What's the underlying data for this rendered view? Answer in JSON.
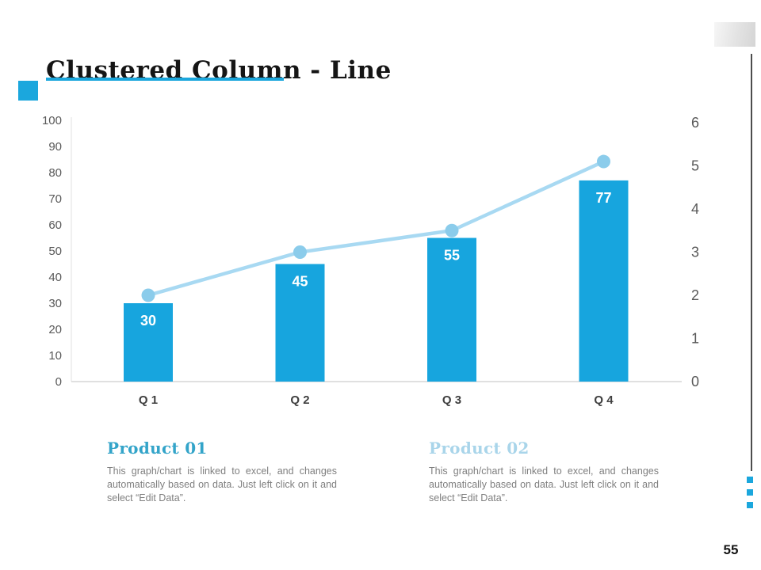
{
  "slide": {
    "title": "Clustered Column - Line",
    "page_number": "55",
    "accent_color": "#1ba7dd"
  },
  "chart_data": {
    "type": "bar",
    "subtype": "clustered-column-with-line",
    "categories": [
      "Q 1",
      "Q 2",
      "Q 3",
      "Q 4"
    ],
    "series": [
      {
        "name": "Product 01",
        "render": "column",
        "axis": "left",
        "values": [
          30,
          45,
          55,
          77
        ],
        "data_labels": [
          "30",
          "45",
          "55",
          "77"
        ]
      },
      {
        "name": "Product 02",
        "render": "line",
        "axis": "right",
        "values": [
          2,
          3,
          3.5,
          5.1
        ]
      }
    ],
    "left_axis": {
      "min": 0,
      "max": 100,
      "step": 10,
      "tick_labels": [
        "0",
        "10",
        "20",
        "30",
        "40",
        "50",
        "60",
        "70",
        "80",
        "90",
        "100"
      ]
    },
    "right_axis": {
      "min": 0,
      "max": 6,
      "step": 1,
      "tick_labels": [
        "0",
        "1",
        "2",
        "3",
        "4",
        "5",
        "6"
      ]
    },
    "grid": "off",
    "legend": "none",
    "colors": {
      "bar": "#17a5de",
      "line": "#a8d9f2",
      "marker": "#8bcceb",
      "axis_line": "#d6d6d6",
      "axis_text": "#595959",
      "bar_label_text": "#ffffff"
    }
  },
  "products": [
    {
      "heading": "Product 01",
      "heading_color": "#33a4c9",
      "body": "This graph/chart is linked to excel, and changes automatically based on data. Just left click on it and select “Edit Data”."
    },
    {
      "heading": "Product 02",
      "heading_color": "#a9d5ea",
      "body": "This graph/chart is linked to excel, and changes automatically based on data. Just left click on it and select “Edit Data”."
    }
  ]
}
